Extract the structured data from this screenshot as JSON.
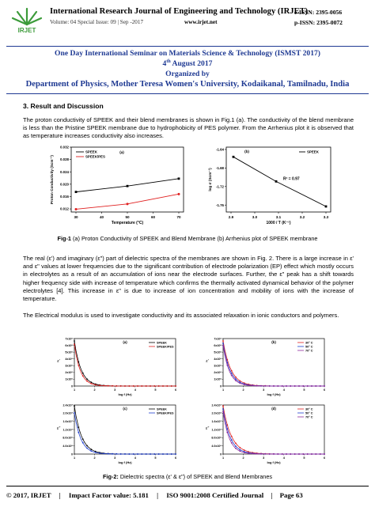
{
  "header": {
    "logo_text": "IRJET",
    "journal_title": "International Research Journal of Engineering and Technology (IRJET)",
    "volume_line": "Volume: 04 Special Issue: 09 | Sep -2017",
    "website": "www.irjet.net",
    "eissn": "e-ISSN: 2395-0056",
    "pissn": "p-ISSN: 2395-0072"
  },
  "seminar": {
    "line1": "One Day International Seminar on Materials Science & Technology (ISMST 2017)",
    "date_day": "4",
    "date_sup": "th",
    "date_rest": " August 2017",
    "organized_by": "Organized by",
    "department": "Department of Physics, Mother Teresa Women's University, Kodaikanal, Tamilnadu, India"
  },
  "section": {
    "heading": "3. Result and Discussion",
    "para1": "The proton conductivity of SPEEK and their blend membranes is shown in Fig.1 (a). The conductivity of the blend membrane is less than the Pristine SPEEK membrane due to hydrophobicity of PES polymer. From the Arrhenius plot it is observed that as temperature increases conductivity also increases.",
    "para2": "The real (ε') and imaginary (ε\") part of dielectric spectra of the membranes are shown in Fig. 2. There is a large increase in ε' and ε\" values at lower frequencies due to the significant contribution of electrode polarization (EP) effect which mostly occurs in electrolytes as a result of an accumulation of ions near the electrode surfaces. Further, the ε\" peak has a shift towards higher frequency side with increase of temperature which confirms the thermally activated dynamical behavior of the polymer electrolytes [4]. This increase in ε\" is due to increase of ion concentration and mobility of ions with the increase of temperature.",
    "para3": "The Electrical modulus is used to investigate conductivity and its associated relaxation in ionic conductors and polymers."
  },
  "fig1": {
    "caption_label": "Fig-1",
    "caption_text": " (a) Proton Conductivity of SPEEK and Blend Membrane (b) Arrhenius plot of SPEEK membrane"
  },
  "fig2": {
    "caption_label": "Fig-2:",
    "caption_text": " Dielectric spectra (ε' & ε\") of SPEEK and Blend Membranes"
  },
  "footer": {
    "copyright": "© 2017, IRJET",
    "impact": "Impact Factor value: 5.181",
    "iso": "ISO 9001:2008 Certified Journal",
    "page": "Page 63"
  },
  "colors": {
    "accent": "#1f3a93",
    "black_series": "#000000",
    "red_series": "#e02020",
    "blue_series": "#1f3fd0",
    "purple_series": "#8e2a9e"
  },
  "chart_data": [
    {
      "type": "line",
      "panel_label": "(a)",
      "xlabel": "Temperature (°C)",
      "ylabel": "Proton Conductivity (Scm⁻¹)",
      "x_ticks": [
        "30",
        "40",
        "50",
        "60",
        "70"
      ],
      "y_ticks": [
        "0.012",
        "0.016",
        "0.020",
        "0.024",
        "0.028",
        "0.032"
      ],
      "xlim": [
        30,
        70
      ],
      "ylim": [
        0.011,
        0.032
      ],
      "x": [
        30,
        50,
        70
      ],
      "series": [
        {
          "name": "SPEEK",
          "values": [
            0.0175,
            0.0194,
            0.0218
          ]
        },
        {
          "name": "SPEEK/PES",
          "values": [
            0.0119,
            0.0136,
            0.0168
          ]
        }
      ],
      "legend": "top-left"
    },
    {
      "type": "line",
      "panel_label": "(b)",
      "xlabel": "1000 / T (K⁻¹)",
      "ylabel": "log σ (Scm⁻¹)",
      "x_ticks": [
        "2.9",
        "3.0",
        "3.1",
        "3.2",
        "3.3"
      ],
      "y_ticks": [
        "-1.64",
        "-1.68",
        "-1.72",
        "-1.76"
      ],
      "xlim": [
        2.9,
        3.3
      ],
      "ylim": [
        -1.775,
        -1.635
      ],
      "x": [
        2.91,
        3.09,
        3.3
      ],
      "series": [
        {
          "name": "SPEEK",
          "values": [
            -1.656,
            -1.709,
            -1.763
          ]
        }
      ],
      "annotation": "R² = 0.97",
      "legend": "top-right"
    },
    {
      "type": "line",
      "panel_label": "(a)",
      "xlabel": "log f (Hz)",
      "ylabel": "ε'",
      "x_ticks": [
        "1",
        "2",
        "3",
        "4",
        "5",
        "6"
      ],
      "y_ticks": [
        "0",
        "1x10⁶",
        "2x10⁶",
        "3x10⁶",
        "4x10⁶",
        "5x10⁶",
        "6x10⁶",
        "7x10⁶"
      ],
      "xlim": [
        1,
        6
      ],
      "ylim": [
        0,
        7
      ],
      "series": [
        {
          "name": "SPEEK"
        },
        {
          "name": "SPEEK/PES"
        }
      ],
      "legend": "top-right"
    },
    {
      "type": "line",
      "panel_label": "(b)",
      "xlabel": "log f (Hz)",
      "ylabel": "ε'",
      "x_ticks": [
        "1",
        "2",
        "3",
        "4",
        "5",
        "6"
      ],
      "y_ticks": [
        "0",
        "1x10⁶",
        "2x10⁶",
        "3x10⁶",
        "4x10⁶",
        "5x10⁶",
        "6x10⁶",
        "7x10⁶"
      ],
      "xlim": [
        1,
        6
      ],
      "ylim": [
        0,
        7
      ],
      "series": [
        {
          "name": "30° C"
        },
        {
          "name": "50° C"
        },
        {
          "name": "70° C"
        }
      ],
      "legend": "top-right"
    },
    {
      "type": "line",
      "panel_label": "(c)",
      "xlabel": "log f (Hz)",
      "ylabel": "ε\"",
      "x_ticks": [
        "1",
        "2",
        "3",
        "4",
        "5",
        "6"
      ],
      "y_ticks": [
        "0",
        "4.0x10⁶",
        "8.0x10⁶",
        "1.2x10⁷",
        "1.6x10⁷",
        "2.0x10⁷",
        "2.4x10⁷"
      ],
      "xlim": [
        1,
        6
      ],
      "ylim": [
        0,
        2.4
      ],
      "series": [
        {
          "name": "SPEEK"
        },
        {
          "name": "SPEEK/PES"
        }
      ],
      "legend": "top-right"
    },
    {
      "type": "line",
      "panel_label": "(d)",
      "xlabel": "log f (Hz)",
      "ylabel": "ε\"",
      "x_ticks": [
        "1",
        "2",
        "3",
        "4",
        "5",
        "6"
      ],
      "y_ticks": [
        "0",
        "4.0x10⁶",
        "8.0x10⁶",
        "1.2x10⁷",
        "1.6x10⁷",
        "2.0x10⁷",
        "2.4x10⁷"
      ],
      "xlim": [
        1,
        6
      ],
      "ylim": [
        0,
        2.4
      ],
      "series": [
        {
          "name": "30° C"
        },
        {
          "name": "50° C"
        },
        {
          "name": "70° C"
        }
      ],
      "legend": "top-right"
    }
  ]
}
